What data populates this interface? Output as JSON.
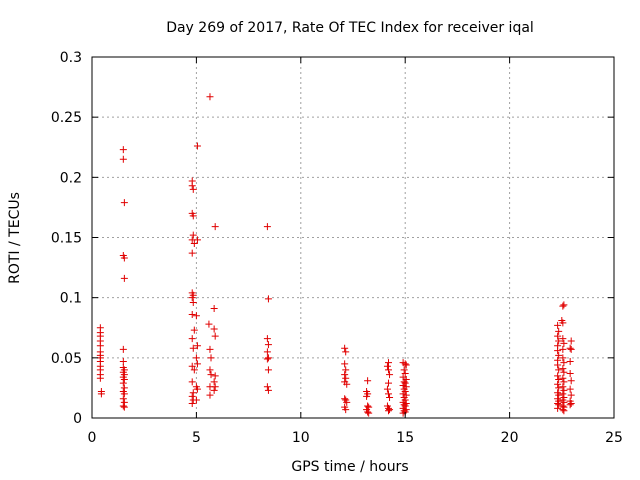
{
  "chart_data": {
    "type": "scatter",
    "title": "Day 269 of 2017, Rate Of TEC Index for receiver iqal",
    "xlabel": "GPS time / hours",
    "ylabel": "ROTI / TECUs",
    "xlim": [
      0,
      25
    ],
    "ylim": [
      0,
      0.3
    ],
    "x_ticks": [
      0,
      5,
      10,
      15,
      20,
      25
    ],
    "x_tick_labels": [
      "0",
      "5",
      "10",
      "15",
      "20",
      "25"
    ],
    "y_ticks": [
      0,
      0.05,
      0.1,
      0.15,
      0.2,
      0.25,
      0.3
    ],
    "y_tick_labels": [
      "0",
      "0.05",
      "0.1",
      "0.15",
      "0.2",
      "0.25",
      "0.3"
    ],
    "grid": true,
    "marker": "+",
    "color": "#e00000",
    "series": [
      {
        "name": "ROTI",
        "points": [
          [
            0.4,
            0.075
          ],
          [
            0.4,
            0.071
          ],
          [
            0.4,
            0.068
          ],
          [
            0.4,
            0.064
          ],
          [
            0.4,
            0.06
          ],
          [
            0.4,
            0.055
          ],
          [
            0.4,
            0.052
          ],
          [
            0.4,
            0.05
          ],
          [
            0.4,
            0.047
          ],
          [
            0.4,
            0.043
          ],
          [
            0.4,
            0.04
          ],
          [
            0.4,
            0.036
          ],
          [
            0.4,
            0.033
          ],
          [
            0.45,
            0.022
          ],
          [
            0.45,
            0.02
          ],
          [
            1.5,
            0.223
          ],
          [
            1.5,
            0.215
          ],
          [
            1.55,
            0.179
          ],
          [
            1.5,
            0.135
          ],
          [
            1.55,
            0.133
          ],
          [
            1.55,
            0.116
          ],
          [
            1.5,
            0.057
          ],
          [
            1.5,
            0.047
          ],
          [
            1.5,
            0.042
          ],
          [
            1.55,
            0.04
          ],
          [
            1.5,
            0.038
          ],
          [
            1.55,
            0.036
          ],
          [
            1.5,
            0.034
          ],
          [
            1.55,
            0.032
          ],
          [
            1.5,
            0.029
          ],
          [
            1.55,
            0.025
          ],
          [
            1.5,
            0.022
          ],
          [
            1.55,
            0.02
          ],
          [
            1.5,
            0.016
          ],
          [
            1.55,
            0.013
          ],
          [
            1.5,
            0.01
          ],
          [
            1.55,
            0.009
          ],
          [
            4.8,
            0.197
          ],
          [
            4.8,
            0.193
          ],
          [
            4.85,
            0.19
          ],
          [
            4.8,
            0.17
          ],
          [
            4.85,
            0.168
          ],
          [
            4.85,
            0.152
          ],
          [
            4.8,
            0.148
          ],
          [
            4.9,
            0.145
          ],
          [
            5.05,
            0.148
          ],
          [
            4.8,
            0.137
          ],
          [
            4.8,
            0.104
          ],
          [
            4.85,
            0.102
          ],
          [
            4.8,
            0.1
          ],
          [
            4.85,
            0.096
          ],
          [
            4.8,
            0.086
          ],
          [
            4.9,
            0.073
          ],
          [
            4.8,
            0.066
          ],
          [
            4.85,
            0.058
          ],
          [
            4.8,
            0.043
          ],
          [
            4.9,
            0.04
          ],
          [
            4.8,
            0.03
          ],
          [
            4.85,
            0.021
          ],
          [
            4.8,
            0.018
          ],
          [
            4.85,
            0.015
          ],
          [
            4.8,
            0.012
          ],
          [
            5.05,
            0.226
          ],
          [
            5.0,
            0.085
          ],
          [
            5.05,
            0.06
          ],
          [
            5.0,
            0.05
          ],
          [
            5.05,
            0.045
          ],
          [
            5.0,
            0.026
          ],
          [
            5.05,
            0.024
          ],
          [
            5.0,
            0.015
          ],
          [
            5.65,
            0.267
          ],
          [
            5.9,
            0.159
          ],
          [
            5.85,
            0.091
          ],
          [
            5.6,
            0.078
          ],
          [
            5.85,
            0.074
          ],
          [
            5.9,
            0.068
          ],
          [
            5.65,
            0.057
          ],
          [
            5.7,
            0.05
          ],
          [
            5.65,
            0.04
          ],
          [
            5.7,
            0.036
          ],
          [
            5.9,
            0.035
          ],
          [
            5.65,
            0.026
          ],
          [
            5.85,
            0.03
          ],
          [
            5.9,
            0.026
          ],
          [
            5.85,
            0.023
          ],
          [
            5.65,
            0.019
          ],
          [
            8.4,
            0.159
          ],
          [
            8.45,
            0.099
          ],
          [
            8.4,
            0.066
          ],
          [
            8.45,
            0.061
          ],
          [
            8.4,
            0.055
          ],
          [
            8.45,
            0.05
          ],
          [
            8.4,
            0.049
          ],
          [
            8.45,
            0.04
          ],
          [
            8.4,
            0.026
          ],
          [
            8.45,
            0.023
          ],
          [
            12.1,
            0.058
          ],
          [
            12.15,
            0.055
          ],
          [
            12.1,
            0.045
          ],
          [
            12.15,
            0.04
          ],
          [
            12.1,
            0.036
          ],
          [
            12.15,
            0.033
          ],
          [
            12.1,
            0.03
          ],
          [
            12.2,
            0.028
          ],
          [
            12.1,
            0.016
          ],
          [
            12.15,
            0.015
          ],
          [
            12.2,
            0.013
          ],
          [
            12.1,
            0.009
          ],
          [
            12.15,
            0.007
          ],
          [
            13.2,
            0.031
          ],
          [
            13.15,
            0.022
          ],
          [
            13.2,
            0.02
          ],
          [
            13.15,
            0.018
          ],
          [
            13.2,
            0.01
          ],
          [
            13.25,
            0.009
          ],
          [
            13.15,
            0.007
          ],
          [
            13.2,
            0.005
          ],
          [
            13.25,
            0.004
          ],
          [
            14.2,
            0.046
          ],
          [
            14.15,
            0.043
          ],
          [
            14.2,
            0.04
          ],
          [
            14.25,
            0.036
          ],
          [
            14.2,
            0.029
          ],
          [
            14.15,
            0.024
          ],
          [
            14.2,
            0.02
          ],
          [
            14.25,
            0.017
          ],
          [
            14.15,
            0.01
          ],
          [
            14.2,
            0.008
          ],
          [
            14.25,
            0.007
          ],
          [
            14.2,
            0.006
          ],
          [
            14.9,
            0.046
          ],
          [
            15.0,
            0.045
          ],
          [
            15.05,
            0.044
          ],
          [
            14.95,
            0.04
          ],
          [
            15.0,
            0.037
          ],
          [
            14.9,
            0.034
          ],
          [
            15.05,
            0.032
          ],
          [
            14.95,
            0.03
          ],
          [
            15.0,
            0.029
          ],
          [
            14.9,
            0.027
          ],
          [
            15.05,
            0.026
          ],
          [
            14.95,
            0.024
          ],
          [
            15.0,
            0.022
          ],
          [
            14.9,
            0.02
          ],
          [
            15.05,
            0.019
          ],
          [
            14.95,
            0.017
          ],
          [
            15.0,
            0.015
          ],
          [
            14.9,
            0.013
          ],
          [
            15.05,
            0.012
          ],
          [
            14.95,
            0.011
          ],
          [
            15.0,
            0.01
          ],
          [
            14.9,
            0.008
          ],
          [
            15.05,
            0.007
          ],
          [
            14.95,
            0.006
          ],
          [
            15.0,
            0.005
          ],
          [
            14.9,
            0.004
          ],
          [
            22.3,
            0.077
          ],
          [
            22.6,
            0.094
          ],
          [
            22.55,
            0.093
          ],
          [
            22.5,
            0.081
          ],
          [
            22.55,
            0.079
          ],
          [
            22.35,
            0.072
          ],
          [
            22.3,
            0.068
          ],
          [
            22.35,
            0.064
          ],
          [
            22.3,
            0.06
          ],
          [
            22.55,
            0.066
          ],
          [
            22.6,
            0.062
          ],
          [
            22.95,
            0.064
          ],
          [
            22.3,
            0.056
          ],
          [
            22.55,
            0.057
          ],
          [
            22.9,
            0.058
          ],
          [
            22.95,
            0.057
          ],
          [
            22.35,
            0.052
          ],
          [
            22.3,
            0.048
          ],
          [
            22.55,
            0.05
          ],
          [
            22.6,
            0.046
          ],
          [
            22.9,
            0.047
          ],
          [
            22.3,
            0.044
          ],
          [
            22.35,
            0.04
          ],
          [
            22.55,
            0.041
          ],
          [
            22.6,
            0.038
          ],
          [
            22.9,
            0.037
          ],
          [
            22.3,
            0.035
          ],
          [
            22.35,
            0.032
          ],
          [
            22.55,
            0.033
          ],
          [
            22.6,
            0.03
          ],
          [
            22.95,
            0.031
          ],
          [
            22.3,
            0.028
          ],
          [
            22.35,
            0.025
          ],
          [
            22.55,
            0.026
          ],
          [
            22.6,
            0.023
          ],
          [
            22.9,
            0.024
          ],
          [
            22.3,
            0.021
          ],
          [
            22.35,
            0.019
          ],
          [
            22.55,
            0.02
          ],
          [
            22.6,
            0.017
          ],
          [
            22.95,
            0.019
          ],
          [
            22.3,
            0.016
          ],
          [
            22.35,
            0.014
          ],
          [
            22.55,
            0.015
          ],
          [
            22.6,
            0.013
          ],
          [
            22.9,
            0.014
          ],
          [
            22.95,
            0.012
          ],
          [
            22.3,
            0.012
          ],
          [
            22.35,
            0.011
          ],
          [
            22.55,
            0.01
          ],
          [
            22.6,
            0.009
          ],
          [
            22.9,
            0.011
          ],
          [
            22.3,
            0.008
          ],
          [
            22.55,
            0.007
          ],
          [
            22.6,
            0.006
          ]
        ]
      }
    ]
  }
}
